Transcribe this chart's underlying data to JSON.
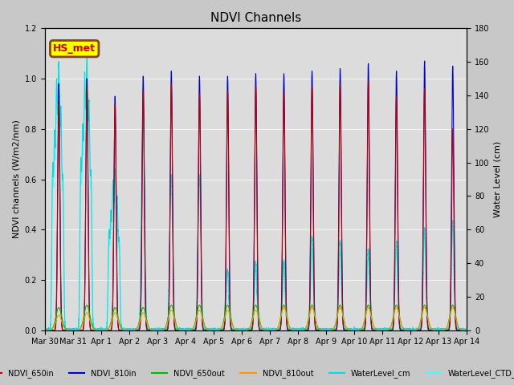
{
  "title": "NDVI Channels",
  "ylabel_left": "NDVI channels (W/m2/nm)",
  "ylabel_right": "Water Level (cm)",
  "ylim_left": [
    0,
    1.2
  ],
  "ylim_right": [
    0,
    180
  ],
  "plot_bg_color": "#dcdcdc",
  "fig_bg_color": "#c8c8c8",
  "legend_label": "HS_met",
  "legend_bg": "#ffff00",
  "legend_border": "#8B4513",
  "line_colors": {
    "NDVI_650in": "#bb0000",
    "NDVI_810in": "#0000cc",
    "NDVI_650out": "#00bb00",
    "NDVI_810out": "#ff9900",
    "WaterLevel_cm": "#00dddd",
    "WaterLevel_CTD_cm": "#44ffff"
  },
  "xtick_labels": [
    "Mar 30",
    "Mar 31",
    "Apr 1",
    "Apr 2",
    "Apr 3",
    "Apr 4",
    "Apr 5",
    "Apr 6",
    "Apr 7",
    "Apr 8",
    "Apr 9",
    "Apr 10",
    "Apr 11",
    "Apr 12",
    "Apr 13",
    "Apr 14"
  ],
  "xtick_positions": [
    0,
    1,
    2,
    3,
    4,
    5,
    6,
    7,
    8,
    9,
    10,
    11,
    12,
    13,
    14,
    15
  ]
}
